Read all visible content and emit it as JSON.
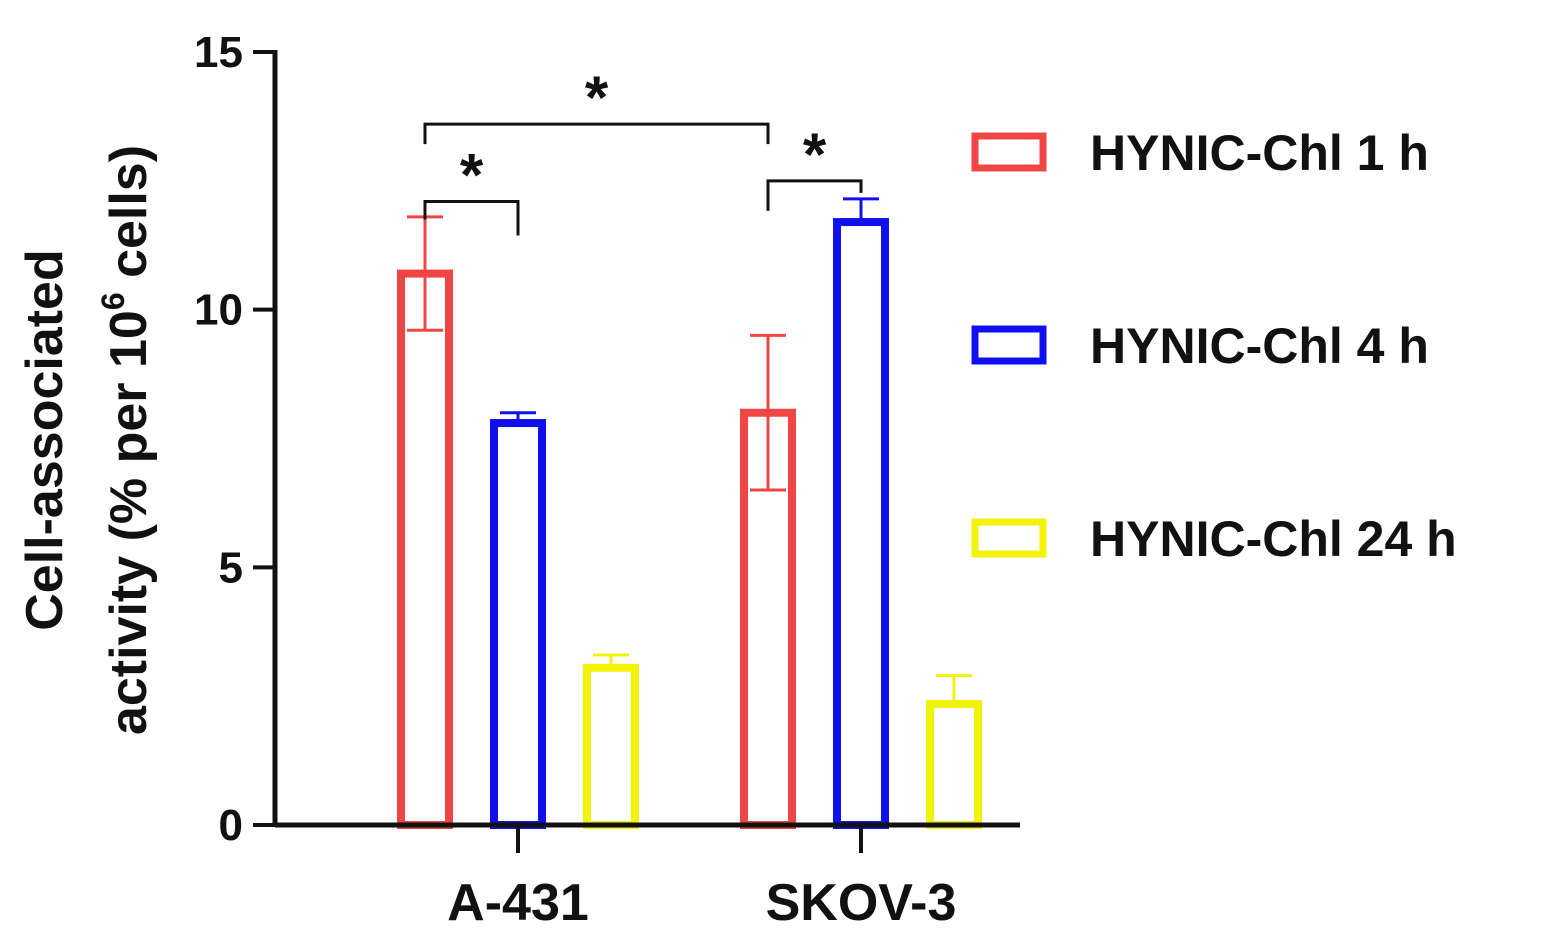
{
  "chart_data": {
    "type": "bar",
    "title": "",
    "xlabel": "",
    "ylabel_line1": "Cell-associated",
    "ylabel_line2_prefix": "activity (% per 10",
    "ylabel_line2_sup": "6",
    "ylabel_line2_suffix": " cells)",
    "ylim": [
      0,
      15
    ],
    "yticks": [
      0,
      5,
      10,
      15
    ],
    "ytick_labels": [
      "0",
      "5",
      "10",
      "15"
    ],
    "categories": [
      "A-431",
      "SKOV-3"
    ],
    "series": [
      {
        "name": "HYNIC-Chl 1 h",
        "color": "#f04545",
        "values": [
          10.7,
          8.0
        ],
        "errors": [
          1.1,
          1.5
        ]
      },
      {
        "name": "HYNIC-Chl 4 h",
        "color": "#1010ee",
        "values": [
          7.8,
          11.7
        ],
        "errors": [
          0.2,
          0.45
        ]
      },
      {
        "name": "HYNIC-Chl 24 h",
        "color": "#f2f20a",
        "values": [
          3.05,
          2.35
        ],
        "errors": [
          0.25,
          0.55
        ]
      }
    ],
    "significance": [
      {
        "label": "*",
        "category": 0,
        "from_series": 0,
        "to_series": 1,
        "level": 12.1
      },
      {
        "label": "*",
        "category": 1,
        "from_series": 0,
        "to_series": 1,
        "level": 12.5
      },
      {
        "label": "*",
        "between_categories": [
          0,
          1
        ],
        "series": 0,
        "level": 13.6
      }
    ],
    "legend_position": "right"
  }
}
